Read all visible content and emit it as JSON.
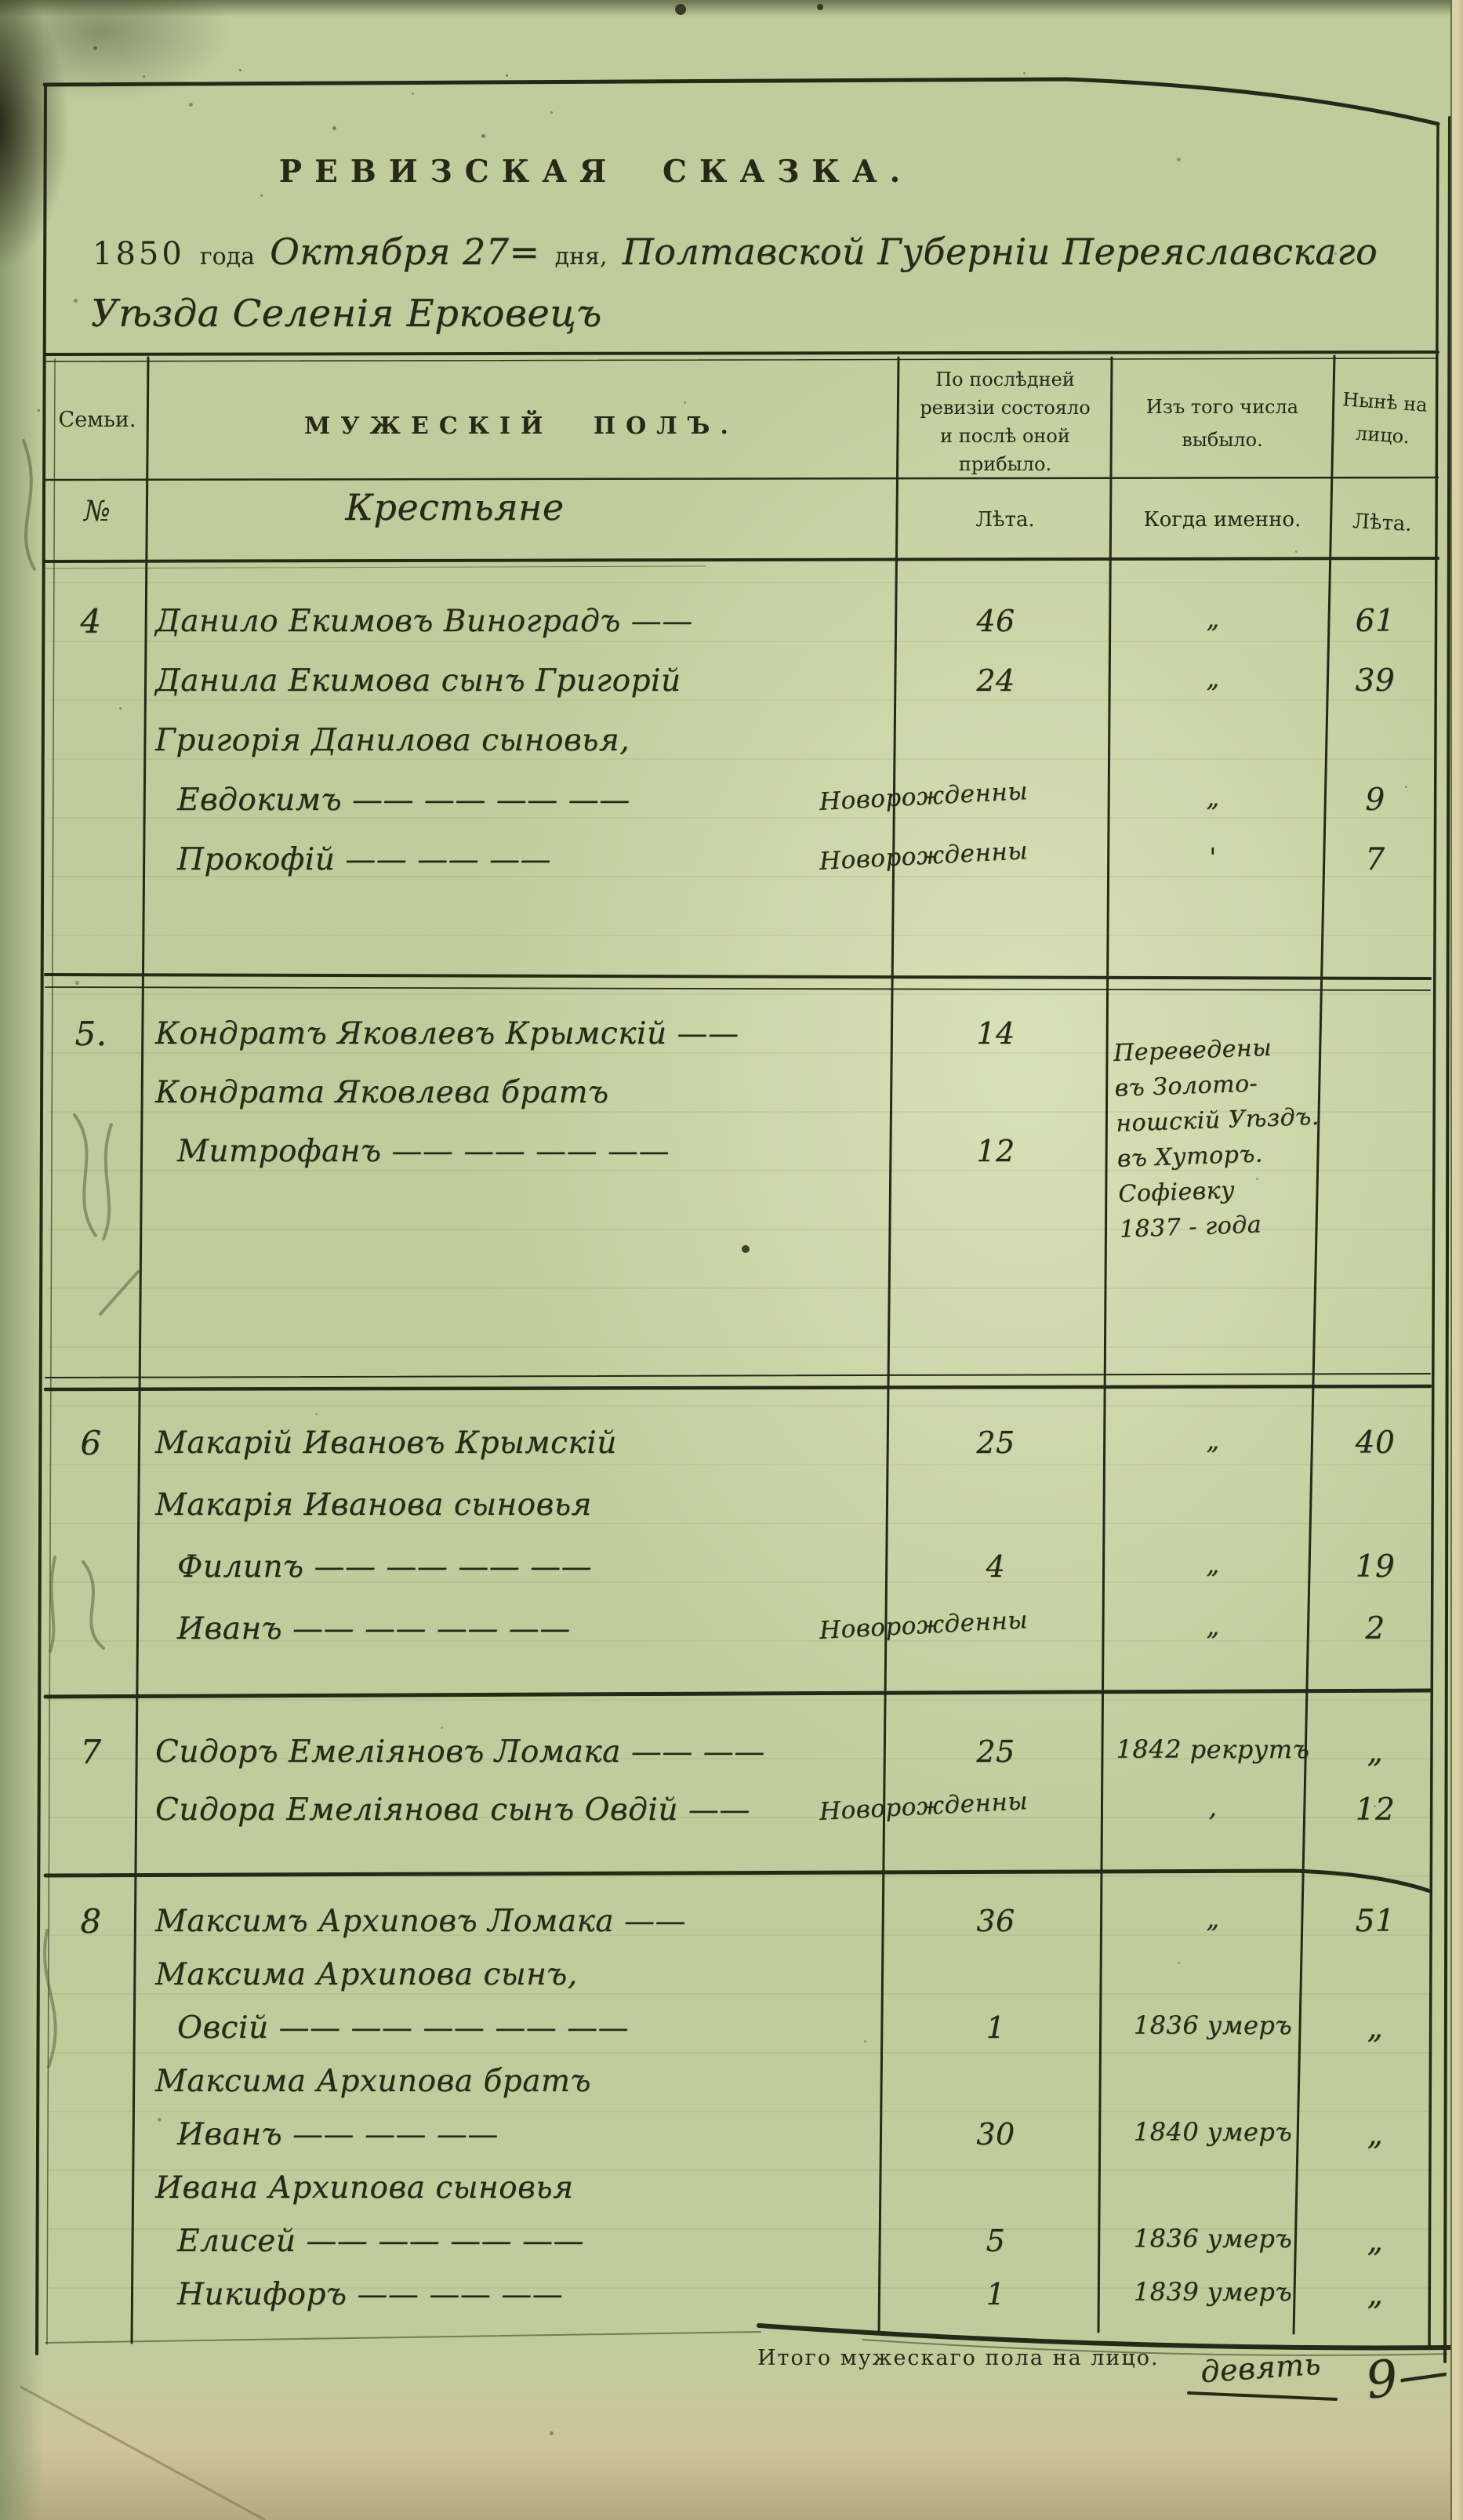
{
  "palette": {
    "paper": "#bfcd9c",
    "ink": "#242918",
    "pencil": "#505838",
    "edge_paper": "#d9d2a6"
  },
  "doc": {
    "title": "РЕВИЗСКАЯ  СКАЗКА.",
    "date": {
      "year": "1850",
      "year_word": "года",
      "month_day": "Октября 27=",
      "day_word": "дня,",
      "region": "Полтавской Губерніи Переяславскаго",
      "line2": "Уѣзда Селенія Ерковецъ"
    }
  },
  "table": {
    "header": {
      "col_family": "Семьи.",
      "col_male": "МУЖЕСКІЙ ПОЛЪ.",
      "col_revision": "По послѣдней\nревизіи состояло\nи послѣ оной\nприбыло.",
      "col_departed": "Изъ того числа\nвыбыло.",
      "col_now": "Нынѣ на\nлицо.",
      "sub_no": "№",
      "sub_class": "Крестьяне",
      "sub_years_left": "Лѣта.",
      "sub_when": "Когда именно.",
      "sub_years_right": "Лѣта."
    },
    "families": [
      {
        "no": "4",
        "rows": [
          {
            "name": "Данило Екимовъ Виноградъ ——",
            "age": "46",
            "when": "„",
            "now": "61"
          },
          {
            "name": "Данила Екимова сынъ Григорій",
            "age": "24",
            "when": "„",
            "now": "39"
          },
          {
            "name": "Григорія Данилова сыновья,"
          },
          {
            "name": "Евдокимъ —— —— —— ——",
            "age_text": "Новорожденны",
            "when": "„",
            "now": "9",
            "indent": true
          },
          {
            "name": "Прокофій —— —— ——",
            "age_text": "Новорожденны",
            "when": "'",
            "now": "7",
            "indent": true
          }
        ]
      },
      {
        "no": "5.",
        "note": "Переведены\nвъ Золото-\nношскій Уѣздъ.\nвъ Хуторъ.\nСофіевку\n1837 - года",
        "rows": [
          {
            "name": "Кондратъ Яковлевъ Крымскій ——",
            "age": "14"
          },
          {
            "name": "Кондрата Яковлева братъ"
          },
          {
            "name": "Митрофанъ —— —— —— ——",
            "age": "12",
            "indent": true
          }
        ]
      },
      {
        "no": "6",
        "rows": [
          {
            "name": "Макарій Ивановъ Крымскій",
            "age": "25",
            "when": "„",
            "now": "40"
          },
          {
            "name": "Макарія Иванова сыновья"
          },
          {
            "name": "Филипъ —— —— —— ——",
            "age": "4",
            "when": "„",
            "now": "19",
            "indent": true
          },
          {
            "name": "Иванъ —— —— —— ——",
            "age_text": "Новорожденны",
            "when": "„",
            "now": "2",
            "indent": true
          }
        ]
      },
      {
        "no": "7",
        "rows": [
          {
            "name": "Сидоръ Емеліяновъ Ломака —— ——",
            "age": "25",
            "when": "1842 рекрутъ",
            "now": "„"
          },
          {
            "name": "Сидора Емеліянова сынъ Овдій ——",
            "age_text": "Новорожденны",
            "when": ",",
            "now": "12"
          }
        ]
      },
      {
        "no": "8",
        "rows": [
          {
            "name": "Максимъ Архиповъ Ломака ——",
            "age": "36",
            "when": "„",
            "now": "51"
          },
          {
            "name": "Максима Архипова сынъ,"
          },
          {
            "name": "Овсій —— —— —— —— ——",
            "age": "1",
            "when": "1836 умеръ",
            "now": "„",
            "indent": true
          },
          {
            "name": "Максима Архипова братъ"
          },
          {
            "name": "Иванъ —— —— ——",
            "age": "30",
            "when": "1840 умеръ",
            "now": "„",
            "indent": true
          },
          {
            "name": "Ивана Архипова сыновья"
          },
          {
            "name": "Елисей —— —— —— ——",
            "age": "5",
            "when": "1836 умеръ",
            "now": "„",
            "indent": true
          },
          {
            "name": "Никифоръ —— —— ——",
            "age": "1",
            "when": "1839 умеръ",
            "now": "„",
            "indent": true
          }
        ]
      }
    ]
  },
  "footer": {
    "total_label": "Итого мужескаго пола на лицо.",
    "total_written": "девять",
    "total_figure": "9—"
  }
}
